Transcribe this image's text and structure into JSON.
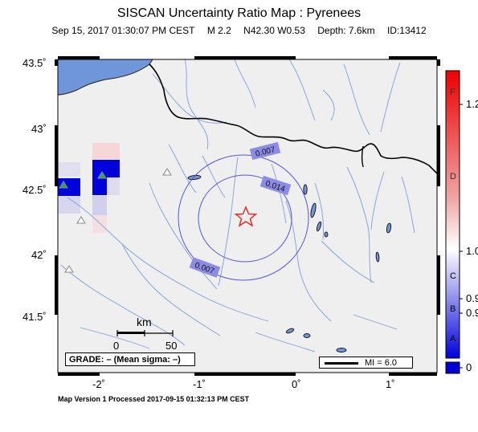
{
  "header": {
    "title": "SISCAN Uncertainty Ratio Map : Pyrenees",
    "date": "Sep 15, 2017 01:30:07 PM CEST",
    "magnitude": "M 2.2",
    "location": "N42.30 W0.53",
    "depth": "Depth: 7.6km",
    "event_id": "ID:13412"
  },
  "map": {
    "lat_ticks": [
      "43.5˚",
      "43˚",
      "42.5˚",
      "42˚",
      "41.5˚"
    ],
    "lon_ticks": [
      "-2˚",
      "-1˚",
      "0˚",
      "1˚"
    ],
    "contour_labels": [
      "0.007",
      "0.014",
      "0.007"
    ],
    "epicenter_icon": "red-star-icon",
    "station_icon": "triangle-icon",
    "colors": {
      "land": "#efefef",
      "sea": "#6f96d8",
      "rivers": "#7aa0e0",
      "border": "#000000",
      "contour": "#5555dd",
      "epicenter": "#ee2222"
    }
  },
  "scale_bar": {
    "unit": "km",
    "labels": [
      "0",
      "50"
    ]
  },
  "grade_box": {
    "text": "GRADE: – (Mean sigma: –)"
  },
  "mi_legend": {
    "text": "MI = 6.0"
  },
  "colorbar": {
    "values": [
      "1.2",
      "1.0",
      "0.9",
      "0.9",
      "0"
    ],
    "grades": [
      "F",
      "D",
      "C",
      "B",
      "A"
    ]
  },
  "footer": {
    "text": "Map Version 1 Processed 2017-09-15 01:32:13 PM CEST"
  }
}
